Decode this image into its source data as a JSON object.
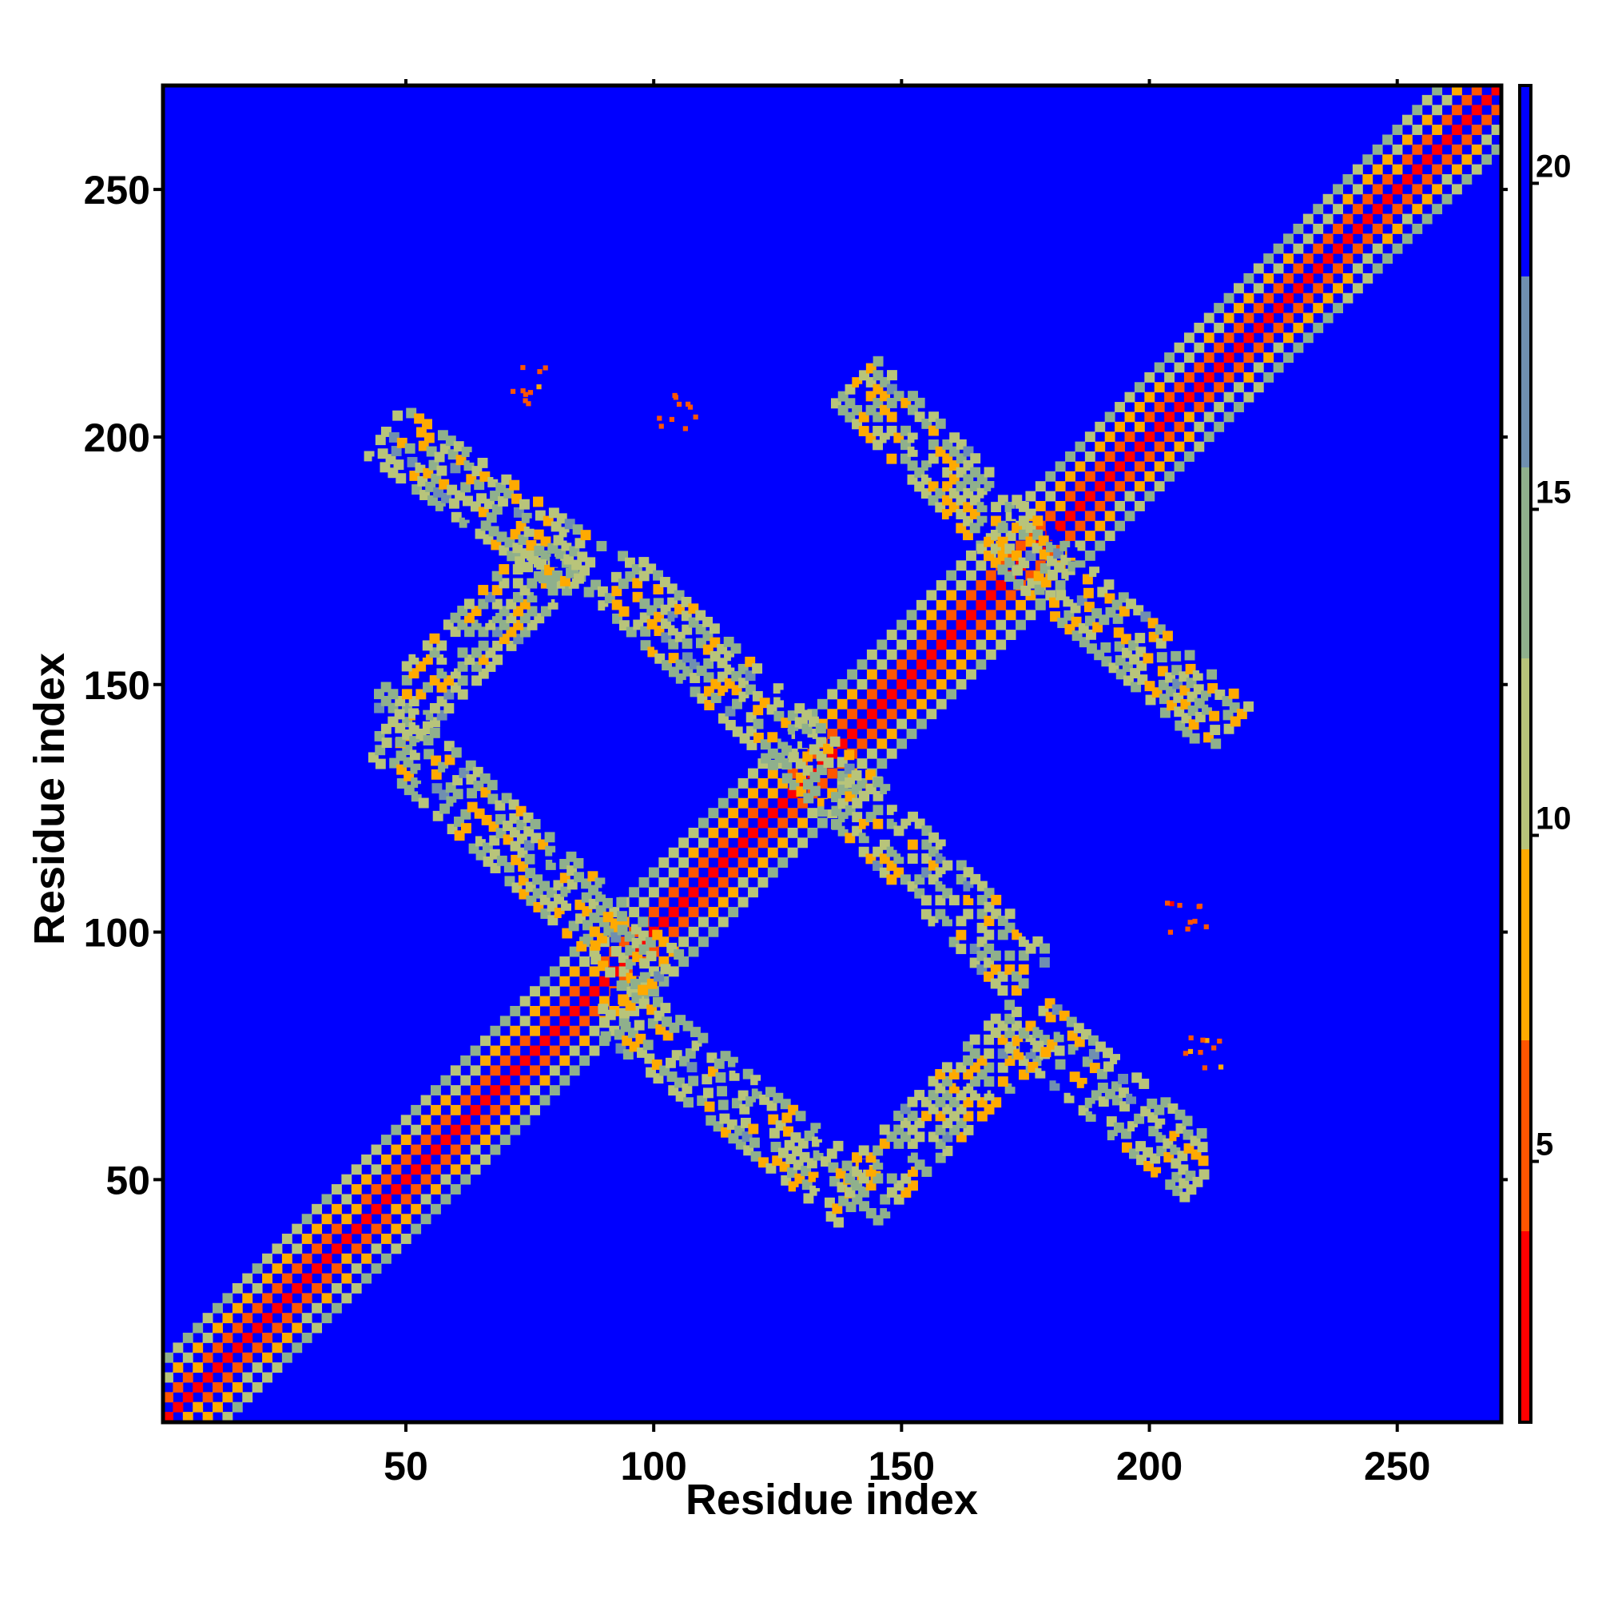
{
  "chart_data": {
    "type": "heatmap",
    "title": "",
    "xlabel": "Residue index",
    "ylabel": "Residue index",
    "xlim": [
      1,
      271
    ],
    "ylim": [
      1,
      271
    ],
    "xticks": [
      50,
      100,
      150,
      200,
      250
    ],
    "yticks": [
      50,
      100,
      150,
      200,
      250
    ],
    "xtick_labels": [
      "50",
      "100",
      "150",
      "200",
      "250"
    ],
    "ytick_labels": [
      "50",
      "100",
      "150",
      "200",
      "250"
    ],
    "colorbar": {
      "range": [
        1,
        21.5
      ],
      "ticks": [
        5,
        10,
        15,
        20
      ],
      "tick_labels": [
        "5",
        "10",
        "15",
        "20"
      ],
      "colors": [
        "#ff0000",
        "#ff5500",
        "#ffaa00",
        "#b8c47a",
        "#8fb08c",
        "#6f8fb0",
        "#0000ff"
      ]
    },
    "background_value": 21,
    "background_color": "#0000ff",
    "diagonal": {
      "from": [
        1,
        1
      ],
      "to": [
        271,
        271
      ],
      "core_value": 2,
      "edge_value": 13,
      "width_residues": 12
    },
    "bands": [
      {
        "from": [
          45,
          140
        ],
        "to": [
          80,
          175
        ],
        "value": 12
      },
      {
        "from": [
          45,
          140
        ],
        "to": [
          100,
          90
        ],
        "value": 12
      },
      {
        "from": [
          45,
          200
        ],
        "to": [
          85,
          172
        ],
        "value": 12
      },
      {
        "from": [
          90,
          172
        ],
        "to": [
          140,
          125
        ],
        "value": 12
      },
      {
        "from": [
          140,
          125
        ],
        "to": [
          175,
          90
        ],
        "value": 12
      },
      {
        "from": [
          90,
          85
        ],
        "to": [
          140,
          45
        ],
        "value": 12
      },
      {
        "from": [
          140,
          45
        ],
        "to": [
          175,
          80
        ],
        "value": 12
      },
      {
        "from": [
          175,
          80
        ],
        "to": [
          210,
          50
        ],
        "value": 12
      },
      {
        "from": [
          140,
          210
        ],
        "to": [
          175,
          175
        ],
        "value": 12
      },
      {
        "from": [
          175,
          175
        ],
        "to": [
          215,
          140
        ],
        "value": 12
      }
    ],
    "contact_clusters": [
      {
        "x": 104,
        "y": 205,
        "value": 5
      },
      {
        "x": 75,
        "y": 210,
        "value": 6
      },
      {
        "x": 207,
        "y": 103,
        "value": 5
      },
      {
        "x": 210,
        "y": 75,
        "value": 6
      }
    ]
  }
}
